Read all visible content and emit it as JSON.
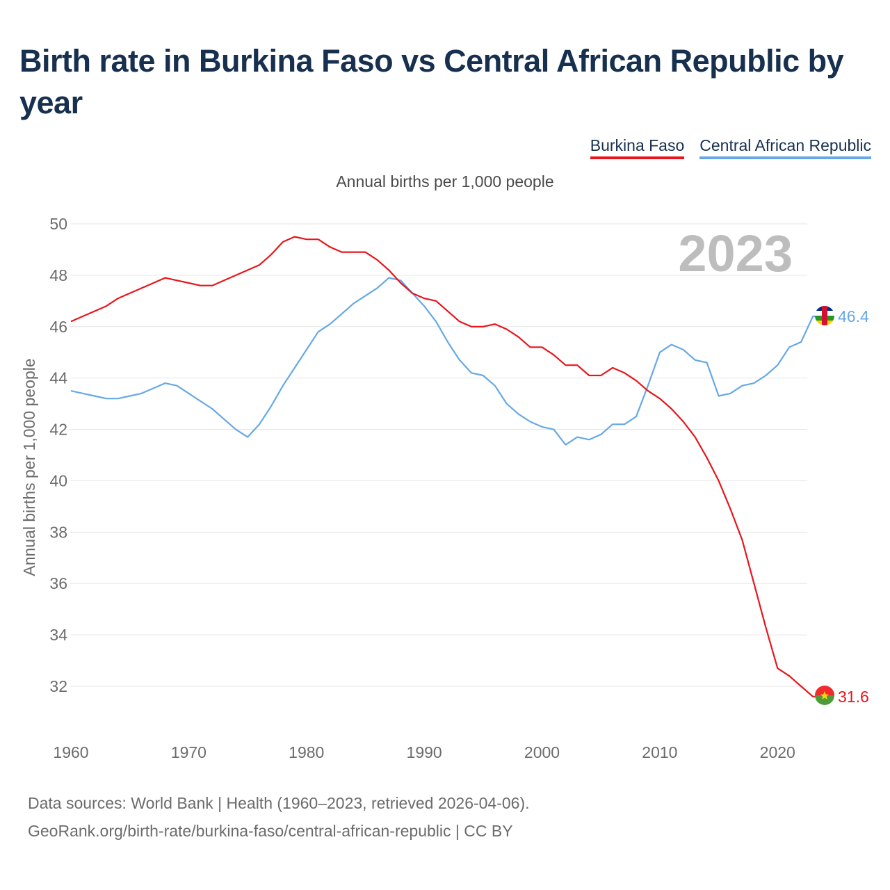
{
  "title": "Birth rate in Burkina Faso vs Central African Republic by year",
  "legend": [
    {
      "name": "Burkina Faso",
      "color": "#e8151b"
    },
    {
      "name": "Central African Republic",
      "color": "#66a8e6"
    }
  ],
  "source": {
    "line1": "Data sources: World Bank | Health (1960–2023, retrieved 2026-04-06).",
    "line2": "GeoRank.org/birth-rate/burkina-faso/central-african-republic | CC BY"
  },
  "chart_data": {
    "type": "line",
    "title": "Birth rate in Burkina Faso vs Central African Republic by year",
    "subtitle": "Annual births per 1,000 people",
    "xlabel": "",
    "ylabel": "Annual births per 1,000 people",
    "xlim": [
      1960,
      2024
    ],
    "ylim": [
      30.5,
      50.5
    ],
    "yticks": [
      32,
      34,
      36,
      38,
      40,
      42,
      44,
      46,
      48,
      50
    ],
    "xticks": [
      1960,
      1970,
      1980,
      1990,
      2000,
      2010,
      2020
    ],
    "year_label": "2023",
    "x": [
      1960,
      1961,
      1962,
      1963,
      1964,
      1965,
      1966,
      1967,
      1968,
      1969,
      1970,
      1971,
      1972,
      1973,
      1974,
      1975,
      1976,
      1977,
      1978,
      1979,
      1980,
      1981,
      1982,
      1983,
      1984,
      1985,
      1986,
      1987,
      1988,
      1989,
      1990,
      1991,
      1992,
      1993,
      1994,
      1995,
      1996,
      1997,
      1998,
      1999,
      2000,
      2001,
      2002,
      2003,
      2004,
      2005,
      2006,
      2007,
      2008,
      2009,
      2010,
      2011,
      2012,
      2013,
      2014,
      2015,
      2016,
      2017,
      2018,
      2019,
      2020,
      2021,
      2022,
      2023
    ],
    "series": [
      {
        "name": "Burkina Faso",
        "color": "#e8151b",
        "end_label": "31.6",
        "values": [
          46.2,
          46.4,
          46.6,
          46.8,
          47.1,
          47.3,
          47.5,
          47.7,
          47.9,
          47.8,
          47.7,
          47.6,
          47.6,
          47.8,
          48.0,
          48.2,
          48.4,
          48.8,
          49.3,
          49.5,
          49.4,
          49.4,
          49.1,
          48.9,
          48.9,
          48.9,
          48.6,
          48.2,
          47.7,
          47.3,
          47.1,
          47.0,
          46.6,
          46.2,
          46.0,
          46.0,
          46.1,
          45.9,
          45.6,
          45.2,
          45.2,
          44.9,
          44.5,
          44.5,
          44.1,
          44.1,
          44.4,
          44.2,
          43.9,
          43.5,
          43.2,
          42.8,
          42.3,
          41.7,
          40.9,
          40.0,
          38.9,
          37.7,
          36.0,
          34.3,
          32.7,
          32.4,
          32.0,
          31.6
        ]
      },
      {
        "name": "Central African Republic",
        "color": "#66a8e6",
        "end_label": "46.4",
        "values": [
          43.5,
          43.4,
          43.3,
          43.2,
          43.2,
          43.3,
          43.4,
          43.6,
          43.8,
          43.7,
          43.4,
          43.1,
          42.8,
          42.4,
          42.0,
          41.7,
          42.2,
          42.9,
          43.7,
          44.4,
          45.1,
          45.8,
          46.1,
          46.5,
          46.9,
          47.2,
          47.5,
          47.9,
          47.8,
          47.3,
          46.8,
          46.2,
          45.4,
          44.7,
          44.2,
          44.1,
          43.7,
          43.0,
          42.6,
          42.3,
          42.1,
          42.0,
          41.4,
          41.7,
          41.6,
          41.8,
          42.2,
          42.2,
          42.5,
          43.7,
          45.0,
          45.3,
          45.1,
          44.7,
          44.6,
          43.3,
          43.4,
          43.7,
          43.8,
          44.1,
          44.5,
          45.2,
          45.4,
          46.4
        ]
      }
    ]
  }
}
